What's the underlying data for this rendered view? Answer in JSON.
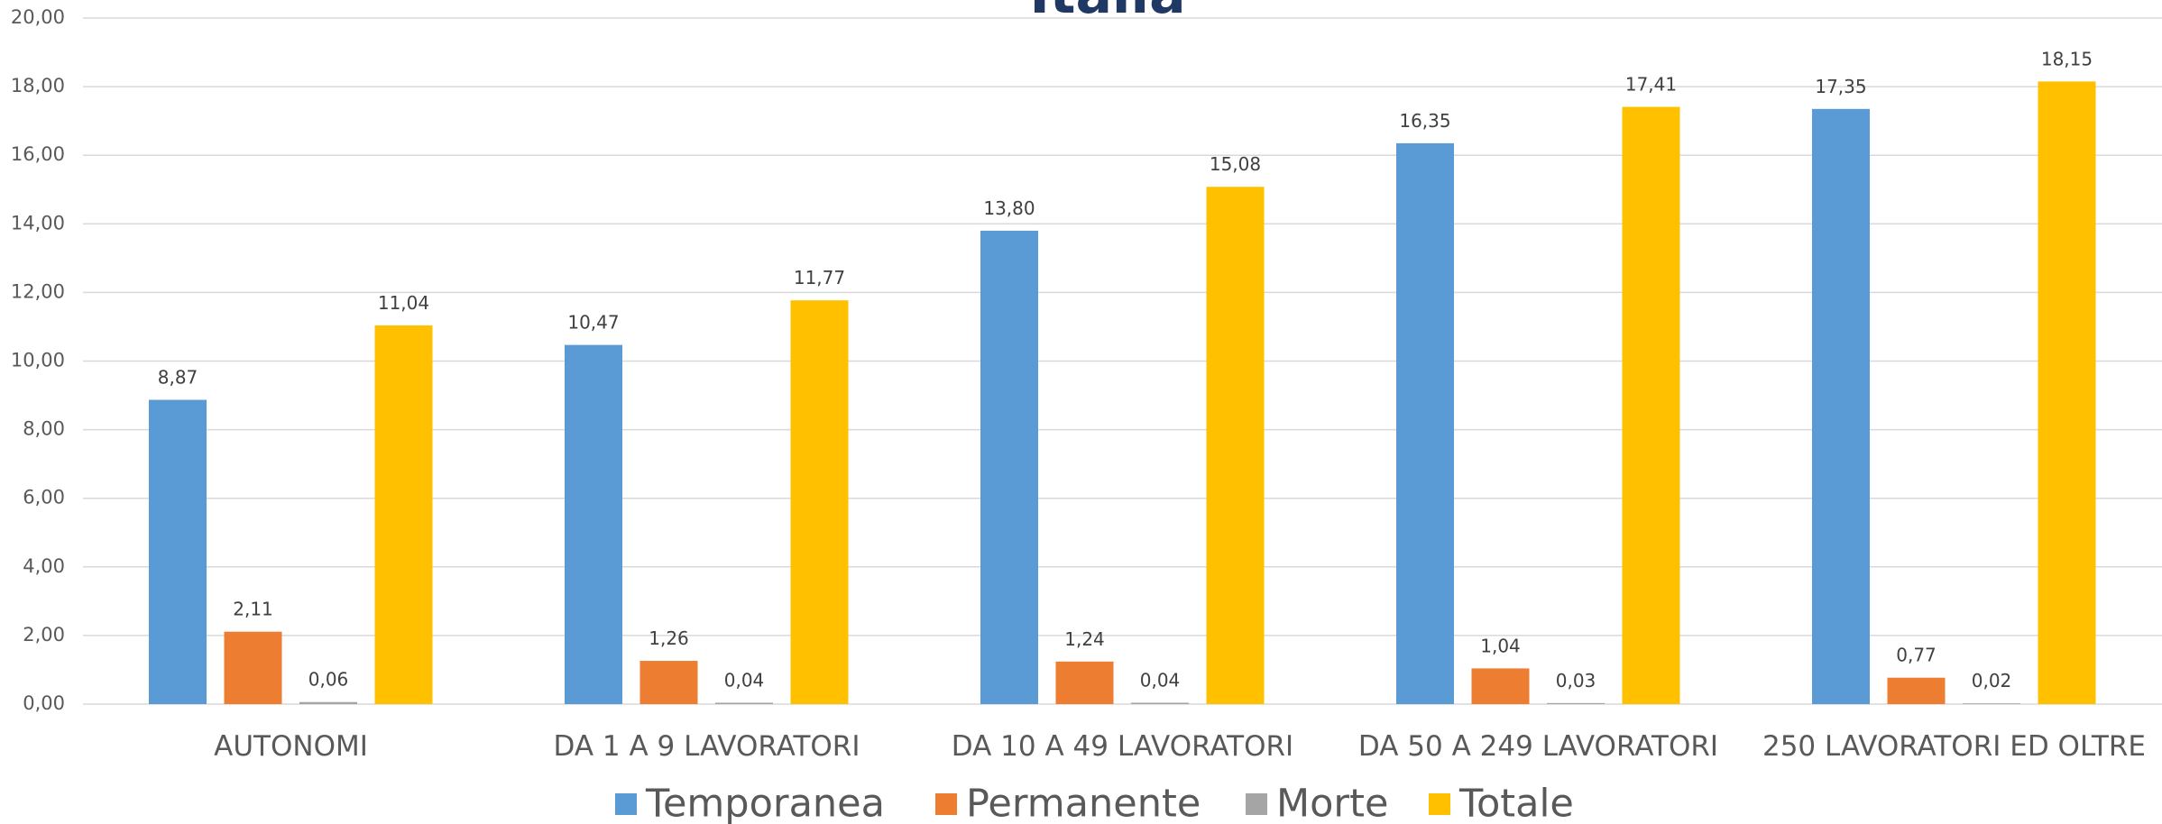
{
  "chart_data": {
    "type": "bar",
    "title": "Italia",
    "categories": [
      "AUTONOMI",
      "DA 1 A 9 LAVORATORI",
      "DA 10 A 49 LAVORATORI",
      "DA 50 A 249 LAVORATORI",
      "250 LAVORATORI ED OLTRE"
    ],
    "series": [
      {
        "name": "Temporanea",
        "color": "#5b9bd5",
        "values": [
          8.87,
          10.47,
          13.8,
          16.35,
          17.35
        ],
        "value_labels": [
          "8,87",
          "10,47",
          "13,80",
          "16,35",
          "17,35"
        ]
      },
      {
        "name": "Permanente",
        "color": "#ed7d31",
        "values": [
          2.11,
          1.26,
          1.24,
          1.04,
          0.77
        ],
        "value_labels": [
          "2,11",
          "1,26",
          "1,24",
          "1,04",
          "0,77"
        ]
      },
      {
        "name": "Morte",
        "color": "#a5a5a5",
        "values": [
          0.06,
          0.04,
          0.04,
          0.03,
          0.02
        ],
        "value_labels": [
          "0,06",
          "0,04",
          "0,04",
          "0,03",
          "0,02"
        ]
      },
      {
        "name": "Totale",
        "color": "#ffc000",
        "values": [
          11.04,
          11.77,
          15.08,
          17.41,
          18.15
        ],
        "value_labels": [
          "11,04",
          "11,77",
          "15,08",
          "17,41",
          "18,15"
        ]
      }
    ],
    "ylim": [
      0,
      20
    ],
    "yticks": [
      {
        "value": 0,
        "label": "0,00"
      },
      {
        "value": 2,
        "label": "2,00"
      },
      {
        "value": 4,
        "label": "4,00"
      },
      {
        "value": 6,
        "label": "6,00"
      },
      {
        "value": 8,
        "label": "8,00"
      },
      {
        "value": 10,
        "label": "10,00"
      },
      {
        "value": 12,
        "label": "12,00"
      },
      {
        "value": 14,
        "label": "14,00"
      },
      {
        "value": 16,
        "label": "16,00"
      },
      {
        "value": 18,
        "label": "18,00"
      },
      {
        "value": 20,
        "label": "20,00"
      }
    ],
    "grid": true,
    "legend": "bottom"
  }
}
